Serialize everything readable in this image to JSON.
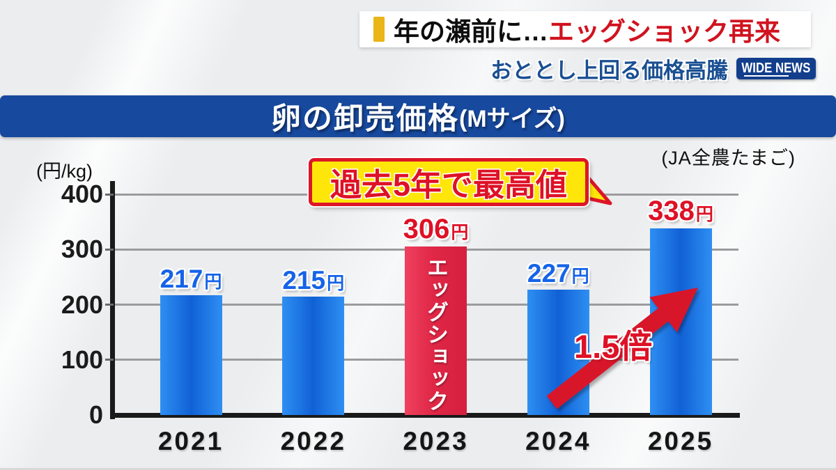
{
  "header": {
    "headline_prefix": "年の瀬前に…",
    "headline_emphasis": "エッグショック再来",
    "subheadline": "おととし上回る価格高騰",
    "badge_label": "WIDE NEWS"
  },
  "title_bar": {
    "main": "卵の卸売価格",
    "size_note": "(Mサイズ)"
  },
  "source_label": "(JA全農たまご)",
  "chart_data": {
    "type": "bar",
    "title": "卵の卸売価格(Mサイズ)",
    "xlabel": "",
    "ylabel": "(円/kg)",
    "source": "(JA全農たまご)",
    "categories": [
      "2021",
      "2022",
      "2023",
      "2024",
      "2025"
    ],
    "values": [
      217,
      215,
      306,
      227,
      338
    ],
    "value_suffix": "円",
    "ylim": [
      0,
      400
    ],
    "yticks": [
      0,
      100,
      200,
      300,
      400
    ],
    "grid": true,
    "legend": false,
    "highlight_index": 2,
    "highlight_bar_text": "エッグショック",
    "label_colors": [
      "blue",
      "blue",
      "red",
      "blue",
      "red"
    ],
    "annotations": {
      "callout": "過去5年で最高値",
      "multiplier": "1.5倍"
    },
    "colors": {
      "bar_blue_edge": "#2e8ff2",
      "bar_blue_core": "#1161d6",
      "bar_red": "#e02746",
      "label_blue": "#1563e8",
      "label_red": "#de1126",
      "arrow_red": "#d8142b",
      "callout_fill": "#ffe60a",
      "callout_border": "#dc1628",
      "title_bar_blue": "#17499e",
      "badge_blue": "#123e8c",
      "subtitle_blue": "#1a4f92",
      "headline_red": "#d0131f",
      "headline_accent_gold": "#e9b517",
      "grid_gray": "#9b9b9d"
    }
  }
}
